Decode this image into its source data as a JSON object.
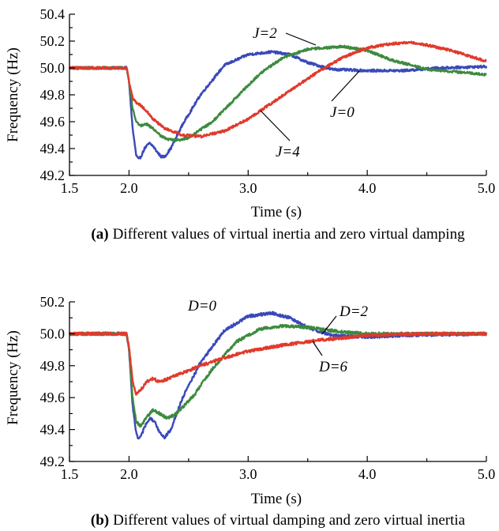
{
  "chart_data": [
    {
      "type": "line",
      "caption_letter": "(a)",
      "caption_text": "Different values of virtual inertia and zero virtual damping",
      "xlabel": "Time (s)",
      "ylabel": "Frequency (Hz)",
      "xlim": [
        1.5,
        5.0
      ],
      "ylim": [
        49.2,
        50.4
      ],
      "xticks": [
        "1.5",
        "2.0",
        "3.0",
        "4.0",
        "5.0"
      ],
      "xtick_values": [
        1.5,
        2.0,
        3.0,
        4.0,
        5.0
      ],
      "yticks": [
        "49.2",
        "49.4",
        "49.6",
        "49.8",
        "50.0",
        "50.2",
        "50.4"
      ],
      "ytick_values": [
        49.2,
        49.4,
        49.6,
        49.8,
        50.0,
        50.2,
        50.4
      ],
      "grid": false,
      "series": [
        {
          "name": "J=0",
          "color": "#3a49b8",
          "x": [
            1.5,
            1.98,
            2.0,
            2.03,
            2.06,
            2.08,
            2.1,
            2.13,
            2.17,
            2.2,
            2.24,
            2.27,
            2.3,
            2.35,
            2.45,
            2.6,
            2.8,
            3.0,
            3.2,
            3.35,
            3.5,
            3.7,
            4.0,
            4.3,
            4.6,
            5.0
          ],
          "y": [
            50.0,
            50.0,
            49.9,
            49.55,
            49.35,
            49.32,
            49.34,
            49.4,
            49.44,
            49.42,
            49.37,
            49.34,
            49.34,
            49.4,
            49.58,
            49.8,
            50.02,
            50.1,
            50.12,
            50.1,
            50.04,
            49.99,
            49.98,
            49.98,
            50.0,
            50.01
          ]
        },
        {
          "name": "J=2",
          "color": "#3d8a3e",
          "x": [
            1.5,
            1.98,
            2.0,
            2.03,
            2.06,
            2.1,
            2.15,
            2.2,
            2.26,
            2.32,
            2.4,
            2.5,
            2.7,
            2.9,
            3.1,
            3.3,
            3.5,
            3.8,
            4.0,
            4.2,
            4.5,
            5.0
          ],
          "y": [
            50.0,
            50.0,
            49.9,
            49.7,
            49.6,
            49.57,
            49.58,
            49.55,
            49.5,
            49.47,
            49.46,
            49.48,
            49.6,
            49.78,
            49.96,
            50.08,
            50.14,
            50.16,
            50.13,
            50.06,
            49.99,
            49.95
          ]
        },
        {
          "name": "J=4",
          "color": "#e03a2c",
          "x": [
            1.5,
            1.98,
            2.0,
            2.03,
            2.06,
            2.1,
            2.15,
            2.2,
            2.3,
            2.45,
            2.6,
            2.8,
            3.0,
            3.2,
            3.4,
            3.6,
            3.8,
            4.0,
            4.2,
            4.35,
            4.5,
            4.7,
            5.0
          ],
          "y": [
            50.0,
            50.0,
            49.9,
            49.78,
            49.74,
            49.72,
            49.68,
            49.62,
            49.55,
            49.5,
            49.49,
            49.53,
            49.62,
            49.74,
            49.86,
            49.98,
            50.08,
            50.15,
            50.18,
            50.19,
            50.17,
            50.13,
            50.05
          ]
        }
      ],
      "annotations": [
        {
          "text": "J=2",
          "series": "J=2"
        },
        {
          "text": "J=0",
          "series": "J=0"
        },
        {
          "text": "J=4",
          "series": "J=4"
        }
      ]
    },
    {
      "type": "line",
      "caption_letter": "(b)",
      "caption_text": "Different values of virtual damping and zero virtual inertia",
      "xlabel": "Time (s)",
      "ylabel": "Frequency (Hz)",
      "xlim": [
        1.5,
        5.0
      ],
      "ylim": [
        49.2,
        50.2
      ],
      "xticks": [
        "1.5",
        "2.0",
        "3.0",
        "4.0",
        "5.0"
      ],
      "xtick_values": [
        1.5,
        2.0,
        3.0,
        4.0,
        5.0
      ],
      "yticks": [
        "49.2",
        "49.4",
        "49.6",
        "49.8",
        "50.0",
        "50.2"
      ],
      "ytick_values": [
        49.2,
        49.4,
        49.6,
        49.8,
        50.0,
        50.2
      ],
      "grid": false,
      "series": [
        {
          "name": "D=0",
          "color": "#3a49b8",
          "x": [
            1.5,
            1.98,
            2.0,
            2.03,
            2.06,
            2.08,
            2.1,
            2.14,
            2.18,
            2.22,
            2.26,
            2.3,
            2.35,
            2.45,
            2.6,
            2.8,
            3.0,
            3.2,
            3.35,
            3.5,
            3.7,
            4.0,
            4.3,
            5.0
          ],
          "y": [
            50.0,
            50.0,
            49.9,
            49.55,
            49.38,
            49.34,
            49.36,
            49.43,
            49.47,
            49.44,
            49.38,
            49.35,
            49.4,
            49.6,
            49.82,
            50.02,
            50.11,
            50.13,
            50.1,
            50.04,
            49.99,
            49.98,
            49.99,
            50.0
          ]
        },
        {
          "name": "D=2",
          "color": "#3d8a3e",
          "x": [
            1.5,
            1.98,
            2.0,
            2.03,
            2.06,
            2.1,
            2.15,
            2.2,
            2.26,
            2.32,
            2.4,
            2.55,
            2.7,
            2.9,
            3.1,
            3.3,
            3.5,
            3.8,
            4.0,
            4.5,
            5.0
          ],
          "y": [
            50.0,
            50.0,
            49.9,
            49.6,
            49.45,
            49.42,
            49.48,
            49.52,
            49.5,
            49.47,
            49.5,
            49.62,
            49.78,
            49.95,
            50.03,
            50.05,
            50.04,
            50.01,
            50.0,
            50.0,
            50.0
          ]
        },
        {
          "name": "D=6",
          "color": "#e03a2c",
          "x": [
            1.5,
            1.98,
            2.0,
            2.03,
            2.06,
            2.1,
            2.15,
            2.2,
            2.25,
            2.3,
            2.4,
            2.6,
            2.8,
            3.0,
            3.3,
            3.6,
            4.0,
            4.5,
            5.0
          ],
          "y": [
            50.0,
            50.0,
            49.92,
            49.7,
            49.62,
            49.65,
            49.7,
            49.72,
            49.7,
            49.71,
            49.74,
            49.8,
            49.85,
            49.89,
            49.93,
            49.96,
            49.99,
            50.0,
            50.0
          ]
        }
      ],
      "annotations": [
        {
          "text": "D=0",
          "series": "D=0"
        },
        {
          "text": "D=2",
          "series": "D=2"
        },
        {
          "text": "D=6",
          "series": "D=6"
        }
      ]
    }
  ]
}
